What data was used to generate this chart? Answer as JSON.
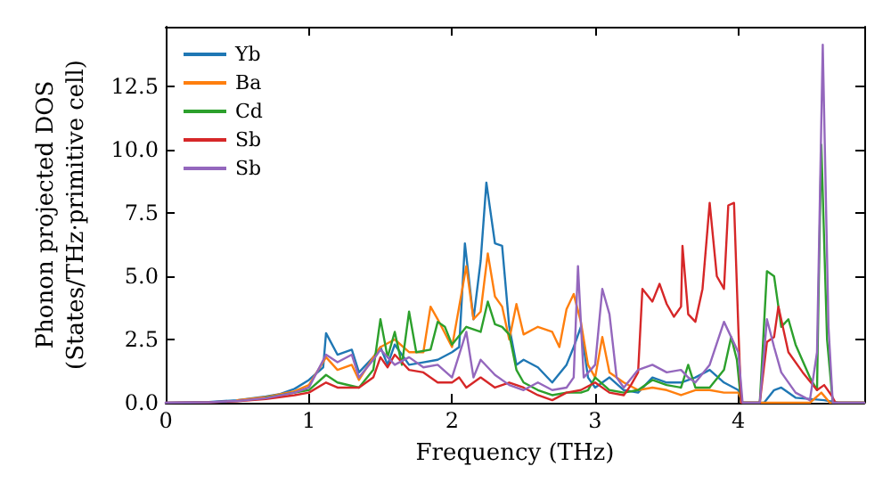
{
  "chart_data": {
    "type": "line",
    "xlabel": "Frequency (THz)",
    "ylabel": "Phonon projected DOS\n(States/THz·primitive cell)",
    "xlim": [
      0,
      4.88
    ],
    "ylim": [
      0,
      14.86
    ],
    "xticks": [
      0,
      1,
      2,
      3,
      4
    ],
    "yticks": [
      {
        "value": 0,
        "label": "0.0"
      },
      {
        "value": 2.5,
        "label": "2.5"
      },
      {
        "value": 5,
        "label": "5.0"
      },
      {
        "value": 7.5,
        "label": "7.5"
      },
      {
        "value": 10,
        "label": "10.0"
      },
      {
        "value": 12.5,
        "label": "12.5"
      }
    ],
    "grid": false,
    "legend": "top left",
    "line_style": "solid",
    "marker": "none",
    "series": [
      {
        "name": "Yb",
        "color": "#1f77b4",
        "x": [
          0,
          0.3,
          0.5,
          0.7,
          0.8,
          0.9,
          1.0,
          1.1,
          1.12,
          1.2,
          1.3,
          1.35,
          1.45,
          1.5,
          1.55,
          1.6,
          1.7,
          1.8,
          1.9,
          2.0,
          2.05,
          2.09,
          2.15,
          2.2,
          2.24,
          2.3,
          2.35,
          2.4,
          2.45,
          2.5,
          2.6,
          2.7,
          2.8,
          2.85,
          2.9,
          2.95,
          3.0,
          3.1,
          3.2,
          3.3,
          3.4,
          3.5,
          3.6,
          3.7,
          3.8,
          3.9,
          4.0,
          4.03,
          4.18,
          4.25,
          4.3,
          4.4,
          4.6,
          4.7,
          4.88
        ],
        "values": [
          0,
          0.03,
          0.1,
          0.25,
          0.35,
          0.55,
          0.9,
          1.4,
          2.75,
          1.9,
          2.1,
          1.2,
          1.8,
          2.2,
          1.5,
          2.3,
          1.5,
          1.6,
          1.7,
          2.0,
          2.2,
          6.3,
          3.3,
          5.6,
          8.7,
          6.3,
          6.2,
          3.0,
          1.5,
          1.7,
          1.4,
          0.8,
          1.5,
          2.2,
          3.0,
          1.0,
          0.6,
          1.0,
          0.5,
          0.4,
          1.0,
          0.8,
          0.8,
          1.0,
          1.3,
          0.8,
          0.5,
          0,
          0,
          0.5,
          0.6,
          0.2,
          0.1,
          0,
          0
        ]
      },
      {
        "name": "Ba",
        "color": "#ff7f0e",
        "x": [
          0.5,
          0.7,
          0.9,
          1.0,
          1.12,
          1.2,
          1.3,
          1.35,
          1.45,
          1.5,
          1.6,
          1.7,
          1.8,
          1.85,
          1.9,
          2.0,
          2.1,
          2.15,
          2.2,
          2.25,
          2.3,
          2.35,
          2.4,
          2.45,
          2.5,
          2.6,
          2.7,
          2.75,
          2.8,
          2.85,
          2.9,
          2.95,
          3.0,
          3.05,
          3.1,
          3.2,
          3.3,
          3.4,
          3.5,
          3.6,
          3.7,
          3.8,
          3.9,
          4.0,
          4.03,
          4.5,
          4.58,
          4.64,
          4.88
        ],
        "values": [
          0.1,
          0.22,
          0.45,
          0.7,
          1.8,
          1.3,
          1.5,
          0.9,
          1.8,
          2.2,
          2.5,
          2.0,
          2.0,
          3.8,
          3.3,
          2.2,
          5.4,
          3.3,
          3.6,
          5.9,
          4.2,
          3.8,
          2.5,
          3.9,
          2.7,
          3.0,
          2.8,
          2.2,
          3.7,
          4.3,
          3.2,
          1.5,
          1.0,
          2.6,
          1.2,
          0.8,
          0.5,
          0.6,
          0.5,
          0.3,
          0.5,
          0.5,
          0.4,
          0.4,
          0,
          0,
          0.4,
          0,
          0
        ]
      },
      {
        "name": "Cd",
        "color": "#2ca02c",
        "x": [
          0.7,
          0.9,
          1.0,
          1.12,
          1.2,
          1.35,
          1.45,
          1.5,
          1.55,
          1.6,
          1.65,
          1.7,
          1.75,
          1.85,
          1.9,
          1.95,
          2.0,
          2.1,
          2.2,
          2.25,
          2.3,
          2.35,
          2.4,
          2.45,
          2.5,
          2.6,
          2.7,
          2.8,
          2.9,
          2.95,
          3.0,
          3.1,
          3.2,
          3.3,
          3.4,
          3.5,
          3.6,
          3.65,
          3.7,
          3.8,
          3.9,
          3.95,
          3.99,
          4.02,
          4.15,
          4.2,
          4.25,
          4.3,
          4.35,
          4.4,
          4.5,
          4.55,
          4.56,
          4.58,
          4.62,
          4.66,
          4.88
        ],
        "values": [
          0.2,
          0.4,
          0.5,
          1.1,
          0.8,
          0.6,
          1.3,
          3.3,
          1.8,
          2.8,
          1.5,
          3.6,
          2.0,
          2.1,
          3.2,
          3.0,
          2.3,
          3.0,
          2.8,
          4.0,
          3.1,
          3.0,
          2.7,
          1.3,
          0.8,
          0.5,
          0.3,
          0.4,
          0.4,
          0.5,
          1.0,
          0.5,
          0.4,
          0.5,
          0.9,
          0.7,
          0.6,
          1.5,
          0.6,
          0.6,
          1.3,
          2.6,
          1.7,
          0,
          0,
          5.2,
          5.0,
          3.0,
          3.3,
          2.3,
          1.0,
          0.5,
          4.0,
          10.2,
          2.5,
          0,
          0
        ]
      },
      {
        "name": "Sb",
        "color": "#d62728",
        "x": [
          0,
          0.3,
          0.5,
          0.7,
          0.9,
          1.0,
          1.12,
          1.2,
          1.35,
          1.45,
          1.5,
          1.55,
          1.6,
          1.7,
          1.8,
          1.9,
          2.0,
          2.05,
          2.1,
          2.2,
          2.3,
          2.4,
          2.5,
          2.6,
          2.7,
          2.8,
          2.9,
          3.0,
          3.1,
          3.2,
          3.25,
          3.3,
          3.33,
          3.4,
          3.45,
          3.5,
          3.55,
          3.6,
          3.61,
          3.65,
          3.7,
          3.75,
          3.8,
          3.85,
          3.9,
          3.93,
          3.97,
          4.0,
          4.02,
          4.15,
          4.2,
          4.25,
          4.28,
          4.35,
          4.45,
          4.55,
          4.6,
          4.65,
          4.68,
          4.88
        ],
        "values": [
          0,
          0.02,
          0.06,
          0.15,
          0.3,
          0.4,
          0.8,
          0.6,
          0.6,
          1.0,
          1.8,
          1.4,
          1.9,
          1.3,
          1.2,
          0.8,
          0.8,
          1.0,
          0.6,
          1.0,
          0.6,
          0.8,
          0.6,
          0.3,
          0.1,
          0.4,
          0.5,
          0.8,
          0.4,
          0.3,
          0.7,
          1.2,
          4.5,
          4.0,
          4.7,
          3.9,
          3.4,
          3.8,
          6.2,
          3.5,
          3.2,
          4.5,
          7.9,
          5.0,
          4.5,
          7.8,
          7.9,
          3.0,
          0,
          0,
          2.4,
          2.6,
          3.8,
          2.0,
          1.2,
          0.5,
          0.7,
          0.3,
          0,
          0
        ]
      },
      {
        "name": "Sb",
        "color": "#9467bd",
        "x": [
          0,
          0.3,
          0.5,
          0.7,
          0.9,
          1.0,
          1.12,
          1.2,
          1.3,
          1.35,
          1.45,
          1.5,
          1.6,
          1.7,
          1.8,
          1.9,
          2.0,
          2.1,
          2.15,
          2.2,
          2.3,
          2.4,
          2.5,
          2.6,
          2.7,
          2.8,
          2.85,
          2.88,
          2.92,
          3.0,
          3.05,
          3.1,
          3.15,
          3.2,
          3.3,
          3.4,
          3.5,
          3.6,
          3.65,
          3.7,
          3.8,
          3.9,
          4.0,
          4.03,
          4.15,
          4.2,
          4.25,
          4.3,
          4.4,
          4.5,
          4.55,
          4.59,
          4.63,
          4.66,
          4.88
        ],
        "values": [
          0,
          0.02,
          0.07,
          0.18,
          0.4,
          0.6,
          1.9,
          1.6,
          1.9,
          1.0,
          1.7,
          2.1,
          1.5,
          1.8,
          1.4,
          1.5,
          1.0,
          2.8,
          1.0,
          1.7,
          1.1,
          0.7,
          0.5,
          0.8,
          0.5,
          0.6,
          1.0,
          5.4,
          1.0,
          1.5,
          4.5,
          3.5,
          1.0,
          0.6,
          1.3,
          1.5,
          1.2,
          1.3,
          1.0,
          0.8,
          1.5,
          3.2,
          2.0,
          0,
          0,
          3.3,
          2.2,
          1.2,
          0.4,
          0.1,
          2.0,
          14.15,
          3.0,
          0,
          0
        ]
      }
    ]
  }
}
